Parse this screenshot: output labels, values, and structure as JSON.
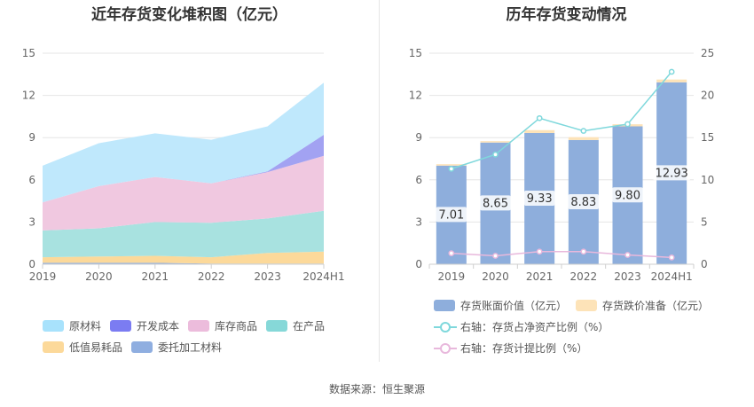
{
  "source_text": "数据来源：恒生聚源",
  "chart_data": [
    {
      "type": "area",
      "stacked": true,
      "title": "近年存货变化堆积图（亿元）",
      "categories": [
        "2019",
        "2020",
        "2021",
        "2022",
        "2023",
        "2024H1"
      ],
      "ylim": [
        0,
        15
      ],
      "yticks": [
        "0",
        "3",
        "6",
        "9",
        "12",
        "15"
      ],
      "grid": true,
      "series": [
        {
          "name": "委托加工材料",
          "color": "#8faee0",
          "values": [
            0.1,
            0.1,
            0.1,
            0.05,
            0.05,
            0.05
          ]
        },
        {
          "name": "低值易耗品",
          "color": "#fcd99a",
          "values": [
            0.4,
            0.45,
            0.5,
            0.45,
            0.75,
            0.85
          ]
        },
        {
          "name": "在产品",
          "color": "#a8e2e0",
          "values": [
            1.9,
            2.0,
            2.4,
            2.45,
            2.45,
            2.9
          ]
        },
        {
          "name": "库存商品",
          "color": "#f0c8e0",
          "values": [
            2.0,
            3.0,
            3.2,
            2.8,
            3.3,
            3.9
          ]
        },
        {
          "name": "开发成本",
          "color": "#a2a2f2",
          "values": [
            0,
            0,
            0,
            0,
            0.05,
            1.5
          ]
        },
        {
          "name": "原材料",
          "color": "#bfe8fc",
          "values": [
            2.6,
            3.05,
            3.1,
            3.1,
            3.2,
            3.7
          ]
        }
      ],
      "legend": {
        "position": "bottom",
        "items": [
          {
            "label": "原材料",
            "color": "#a8e2fc"
          },
          {
            "label": "开发成本",
            "color": "#7b7cf2"
          },
          {
            "label": "库存商品",
            "color": "#ecbcdc"
          },
          {
            "label": "在产品",
            "color": "#86d8d8"
          },
          {
            "label": "低值易耗品",
            "color": "#fcd99a"
          },
          {
            "label": "委托加工材料",
            "color": "#8faee0"
          }
        ]
      }
    },
    {
      "type": "bar",
      "title": "历年存货变动情况",
      "categories": [
        "2019",
        "2020",
        "2021",
        "2022",
        "2023",
        "2024H1"
      ],
      "ylim": [
        0,
        15
      ],
      "yticks": [
        "0",
        "3",
        "6",
        "9",
        "12",
        "15"
      ],
      "y2lim": [
        0,
        25
      ],
      "y2ticks": [
        "0",
        "5",
        "10",
        "15",
        "20",
        "25"
      ],
      "grid": true,
      "bar_series": [
        {
          "name": "存货账面价值（亿元）",
          "color": "#8eaedc",
          "values": [
            7.01,
            8.65,
            9.33,
            8.83,
            9.8,
            12.93
          ],
          "labels": [
            "7.01",
            "8.65",
            "9.33",
            "8.83",
            "9.80",
            "12.93"
          ]
        },
        {
          "name": "存货跌价准备（亿元）",
          "color": "#fde3b8",
          "values": [
            0.1,
            0.1,
            0.2,
            0.2,
            0.15,
            0.2
          ]
        }
      ],
      "line_series": [
        {
          "name": "右轴：存货占净资产比例（%）",
          "color": "#7fd8dc",
          "axis": "right",
          "values": [
            11.3,
            13.0,
            17.3,
            15.8,
            16.6,
            22.8
          ]
        },
        {
          "name": "右轴：存货计提比例（%）",
          "color": "#e8b8dc",
          "axis": "right",
          "values": [
            1.3,
            1.0,
            1.5,
            1.5,
            1.1,
            0.8
          ]
        }
      ],
      "legend": {
        "position": "bottom"
      }
    }
  ]
}
